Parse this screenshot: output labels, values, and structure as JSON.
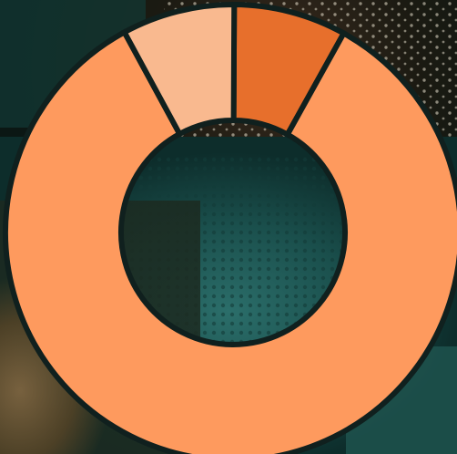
{
  "background": {
    "description_icon": "reef-photo-icon"
  },
  "chart_data": {
    "type": "pie",
    "variant": "donut",
    "categories": [
      "",
      "",
      ""
    ],
    "values": [
      84,
      8,
      8
    ],
    "colors": [
      "#fe9a5e",
      "#e76f2c",
      "#f9b98f"
    ],
    "title": "",
    "legend": "none",
    "separator_color": "#10201e"
  }
}
